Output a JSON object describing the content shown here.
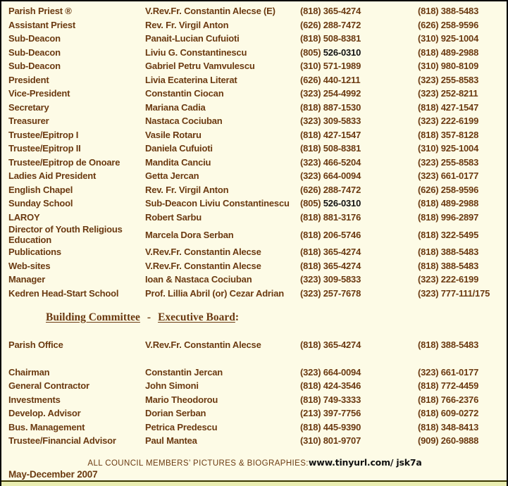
{
  "theme": {
    "background": "#FDFBE6",
    "text_brown": "#6B3A11",
    "text_black": "#111111",
    "bottom_line": "#3A3702",
    "bottom_strip": "#E9EDB0"
  },
  "council": {
    "rows": [
      {
        "role": "Parish Priest ®",
        "name": "V.Rev.Fr. Constantin Alecse (E)",
        "p1": "(818) 365-4274",
        "p2": "(818) 388-5483"
      },
      {
        "role": "Assistant Priest",
        "name": "Rev. Fr. Virgil Anton",
        "p1": "(626) 288-7472",
        "p2": "(626) 258-9596"
      },
      {
        "role": "Sub-Deacon",
        "name": "Panait-Lucian Cufuioti",
        "p1": "(818) 508-8381",
        "p2": "(310) 925-1004"
      },
      {
        "role": "Sub-Deacon",
        "name": "Liviu G. Constantinescu",
        "p1": "(805) ",
        "p1b": "526-0310",
        "p2": "(818) 489-2988"
      },
      {
        "role": "Sub-Deacon",
        "name": "Gabriel Petru Vamvulescu",
        "p1": "(310) 571-1989",
        "p2": "(310) 980-8109"
      },
      {
        "role": "President",
        "name": "Livia Ecaterina Literat",
        "p1": "(626) 440-1211",
        "p2": "(323) 255-8583"
      },
      {
        "role": "Vice-President",
        "name": "Constantin Ciocan",
        "p1": "(323) 254-4992",
        "p2": "(323) 252-8211"
      },
      {
        "role": "Secretary",
        "name": "Mariana Cadia",
        "p1": "(818) 887-1530",
        "p2": "(818) 427-1547"
      },
      {
        "role": "Treasurer",
        "name": "Nastaca Cociuban",
        "p1": "(323) 309-5833",
        "p2": "(323) 222-6199"
      },
      {
        "role": "Trustee/Epitrop I",
        "name": "Vasile Rotaru",
        "p1": "(818) 427-1547",
        "p2": "(818) 357-8128"
      },
      {
        "role": "Trustee/Epitrop II",
        "name": "Daniela Cufuioti",
        "p1": "(818) 508-8381",
        "p2": "(310) 925-1004"
      },
      {
        "role": "Trustee/Epitrop de Onoare",
        "name": "Mandita Canciu",
        "p1": "(323) 466-5204",
        "p2": "(323) 255-8583"
      },
      {
        "role": "Ladies Aid President",
        "name": "Getta Jercan",
        "p1": "(323) 664-0094",
        "p2": "(323) 661-0177"
      },
      {
        "role": "English Chapel",
        "name": "Rev. Fr. Virgil Anton",
        "p1": "(626) 288-7472",
        "p2": "(626) 258-9596"
      },
      {
        "role": "Sunday School",
        "name": "Sub-Deacon Liviu Constantinescu",
        "p1": "(805) ",
        "p1b": "526-0310",
        "p2": "(818) 489-2988"
      },
      {
        "role": "LAROY",
        "name": "Robert Sarbu",
        "p1": "(818) 881-3176",
        "p2": "(818) 996-2897"
      },
      {
        "role": "Director of Youth Religious Education",
        "name": "Marcela Dora Serban",
        "p1": "(818) 206-5746",
        "p2": "(818) 322-5495"
      },
      {
        "role": "Publications",
        "name": "V.Rev.Fr. Constantin Alecse",
        "p1": "(818) 365-4274",
        "p2": "(818) 388-5483"
      },
      {
        "role": "Web-sites",
        "name": "V.Rev.Fr. Constantin Alecse",
        "p1": "(818) 365-4274",
        "p2": "(818) 388-5483"
      },
      {
        "role": "Manager",
        "name": "Ioan & Nastaca Cociuban",
        "p1": "(323) 309-5833",
        "p2": "(323) 222-6199"
      },
      {
        "role": "Kedren Head-Start School",
        "name": "Prof. Lillia Abril (or) Cezar Adrian",
        "p1": "(323) 257-7678",
        "p2": "(323) 777-111/175"
      }
    ]
  },
  "committee_heading": {
    "part1": "Building Committee",
    "separator": "-",
    "part2": "Executive Board",
    "suffix": ":"
  },
  "committee": {
    "rows": [
      {
        "role": "Parish Office",
        "name": "V.Rev.Fr. Constantin Alecse",
        "p1": "(818) 365-4274",
        "p2": "(818) 388-5483",
        "gap_after": true
      },
      {
        "role": "Chairman",
        "name": "Constantin Jercan",
        "p1": "(323) 664-0094",
        "p2": "(323) 661-0177"
      },
      {
        "role": "General Contractor",
        "name": "John Simoni",
        "p1": "(818) 424-3546",
        "p2": "(818) 772-4459"
      },
      {
        "role": "Investments",
        "name": "Mario Theodorou",
        "p1": "(818) 749-3333",
        "p2": "(818) 766-2376"
      },
      {
        "role": "Develop. Advisor",
        "name": "Dorian Serban",
        "p1": "(213) 397-7756",
        "p2": "(818) 609-0272"
      },
      {
        "role": "Bus. Management",
        "name": "Petrica Predescu",
        "p1": "(818) 445-9390",
        "p2": "(818) 348-8413"
      },
      {
        "role": "Trustee/Financial Advisor",
        "name": "Paul Mantea",
        "p1": "(310) 801-9707",
        "p2": "(909) 260-9888"
      }
    ]
  },
  "footer": {
    "caps_label": "ALL COUNCIL MEMBERS’ PICTURES & BIOGRAPHIES:",
    "url": "www.tinyurl.com/ jsk7a"
  },
  "period": "May-December 2007"
}
